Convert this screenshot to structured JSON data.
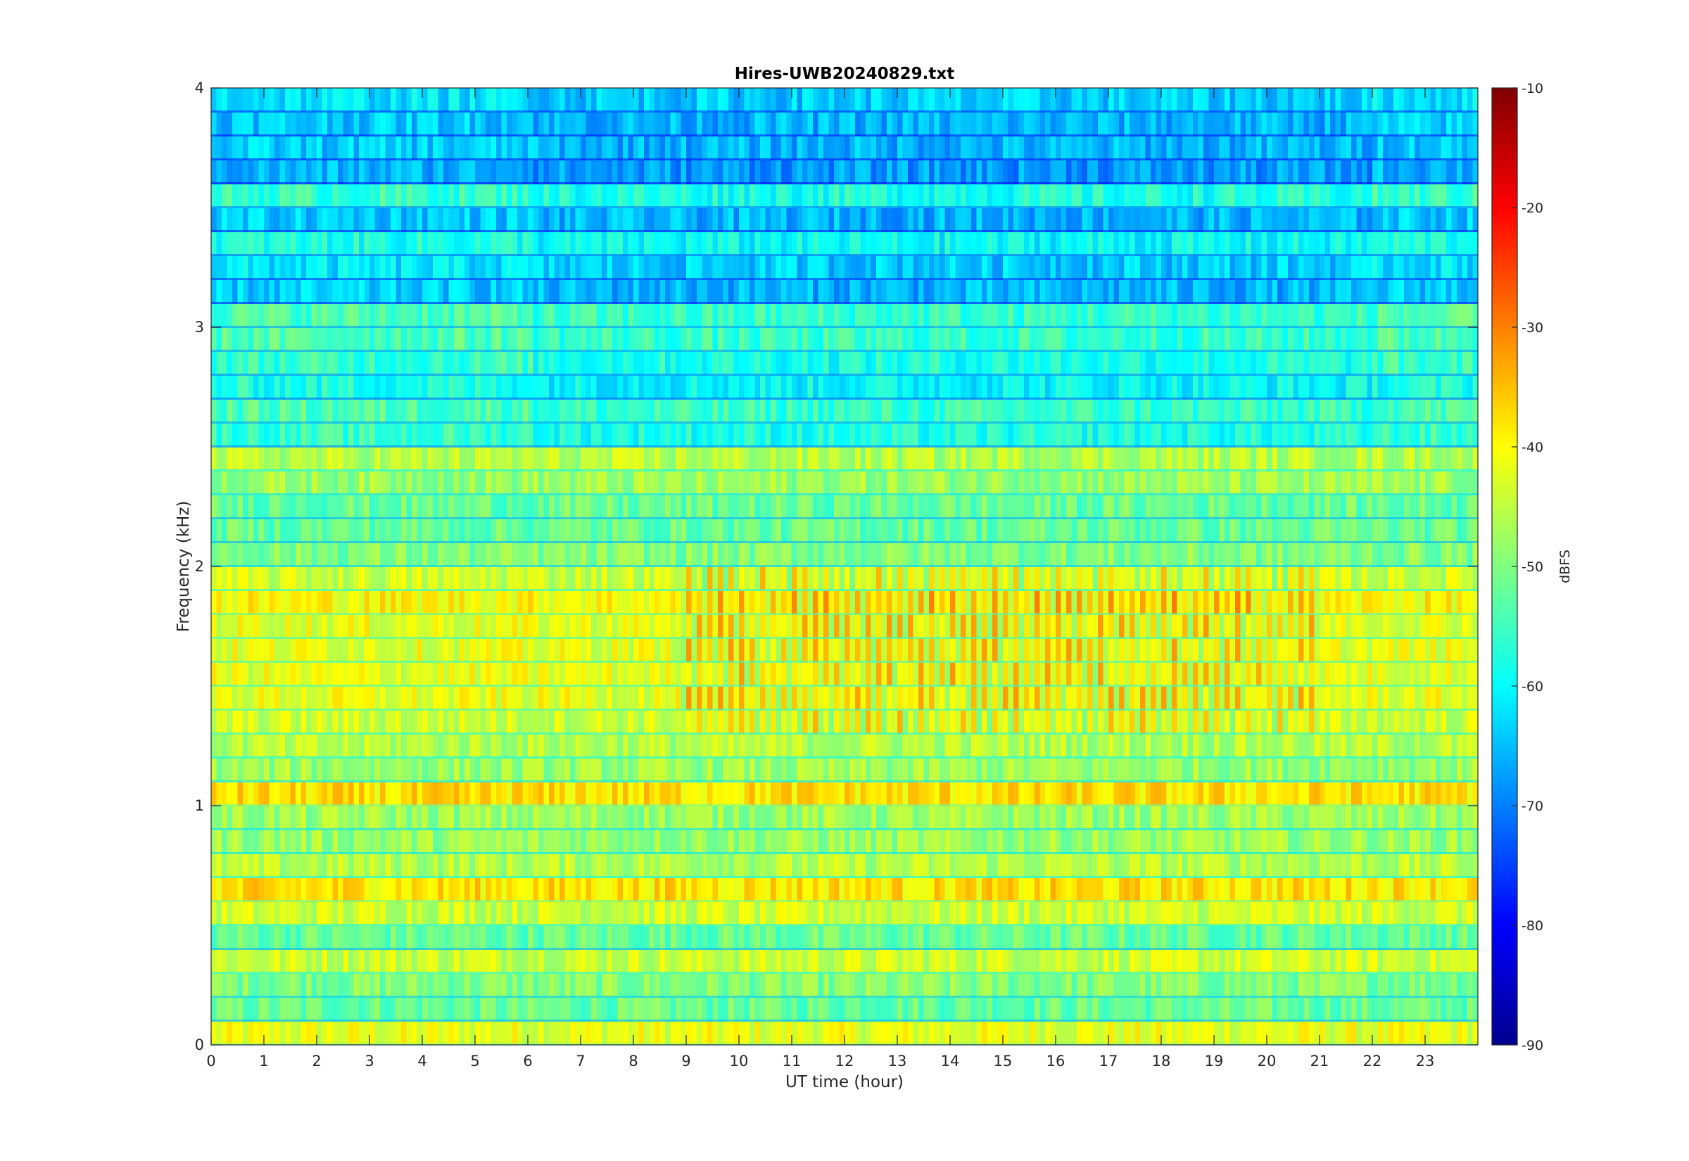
{
  "chart_data": {
    "type": "heatmap",
    "title": "Hires-UWB20240829.txt",
    "xlabel": "UT time (hour)",
    "ylabel": "Frequency (kHz)",
    "xlim": [
      0,
      24
    ],
    "ylim": [
      0,
      4
    ],
    "x_ticks": [
      "0",
      "1",
      "2",
      "3",
      "4",
      "5",
      "6",
      "7",
      "8",
      "9",
      "10",
      "11",
      "12",
      "13",
      "14",
      "15",
      "16",
      "17",
      "18",
      "19",
      "20",
      "21",
      "22",
      "23"
    ],
    "y_ticks": [
      "0",
      "1",
      "2",
      "3",
      "4"
    ],
    "colorbar": {
      "label": "dBFS",
      "limits": [
        -90,
        -10
      ],
      "ticks": [
        "-10",
        "-20",
        "-30",
        "-40",
        "-50",
        "-60",
        "-70",
        "-80",
        "-90"
      ],
      "colormap": "jet"
    },
    "bands_khz": [
      {
        "f": 0.05,
        "level": -42
      },
      {
        "f": 0.15,
        "level": -52
      },
      {
        "f": 0.25,
        "level": -50
      },
      {
        "f": 0.35,
        "level": -44
      },
      {
        "f": 0.45,
        "level": -52
      },
      {
        "f": 0.55,
        "level": -44
      },
      {
        "f": 0.65,
        "level": -38
      },
      {
        "f": 0.75,
        "level": -46
      },
      {
        "f": 0.85,
        "level": -48
      },
      {
        "f": 0.95,
        "level": -48
      },
      {
        "f": 1.05,
        "level": -38
      },
      {
        "f": 1.15,
        "level": -48
      },
      {
        "f": 1.25,
        "level": -46
      },
      {
        "f": 1.35,
        "level": -44
      },
      {
        "f": 1.45,
        "level": -42
      },
      {
        "f": 1.55,
        "level": -42
      },
      {
        "f": 1.65,
        "level": -42
      },
      {
        "f": 1.75,
        "level": -42
      },
      {
        "f": 1.85,
        "level": -40
      },
      {
        "f": 1.95,
        "level": -44
      },
      {
        "f": 2.05,
        "level": -50
      },
      {
        "f": 2.15,
        "level": -52
      },
      {
        "f": 2.25,
        "level": -52
      },
      {
        "f": 2.35,
        "level": -48
      },
      {
        "f": 2.45,
        "level": -46
      },
      {
        "f": 2.55,
        "level": -56
      },
      {
        "f": 2.65,
        "level": -54
      },
      {
        "f": 2.75,
        "level": -58
      },
      {
        "f": 2.85,
        "level": -56
      },
      {
        "f": 2.95,
        "level": -54
      },
      {
        "f": 3.05,
        "level": -54
      },
      {
        "f": 3.15,
        "level": -64
      },
      {
        "f": 3.25,
        "level": -62
      },
      {
        "f": 3.35,
        "level": -58
      },
      {
        "f": 3.45,
        "level": -64
      },
      {
        "f": 3.55,
        "level": -56
      },
      {
        "f": 3.65,
        "level": -66
      },
      {
        "f": 3.75,
        "level": -64
      },
      {
        "f": 3.85,
        "level": -64
      },
      {
        "f": 3.95,
        "level": -62
      }
    ]
  }
}
